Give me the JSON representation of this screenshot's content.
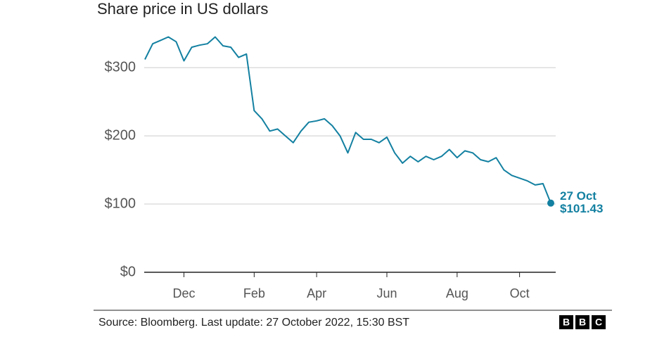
{
  "chart_data": {
    "type": "line",
    "title": "Share price in US dollars",
    "categories": [
      null,
      null,
      null,
      null,
      null,
      "Dec",
      null,
      null,
      null,
      null,
      null,
      null,
      null,
      null,
      "Feb",
      null,
      null,
      null,
      null,
      null,
      null,
      null,
      "Apr",
      null,
      null,
      null,
      null,
      null,
      null,
      null,
      null,
      "Jun",
      null,
      null,
      null,
      null,
      null,
      null,
      null,
      null,
      "Aug",
      null,
      null,
      null,
      null,
      null,
      null,
      null,
      "Oct",
      null,
      null,
      null,
      null
    ],
    "series": [
      {
        "name": "Share price",
        "color": "#1380a1",
        "values": [
          312,
          335,
          340,
          345,
          338,
          310,
          330,
          333,
          335,
          345,
          332,
          330,
          315,
          320,
          237,
          225,
          207,
          210,
          200,
          190,
          207,
          220,
          222,
          225,
          215,
          200,
          175,
          205,
          195,
          195,
          190,
          198,
          175,
          160,
          170,
          162,
          170,
          165,
          170,
          180,
          168,
          178,
          175,
          165,
          162,
          168,
          150,
          142,
          138,
          134,
          128,
          130,
          101.43
        ]
      }
    ],
    "ylim": [
      0,
      360
    ],
    "yticks": [
      {
        "value": 0,
        "label": "$0"
      },
      {
        "value": 100,
        "label": "$100"
      },
      {
        "value": 200,
        "label": "$200"
      },
      {
        "value": 300,
        "label": "$300"
      }
    ],
    "grid": true,
    "annotation": [
      "27 Oct",
      "$101.43"
    ],
    "source": "Source: Bloomberg. Last update: 27 October 2022, 15:30 BST",
    "logo": [
      "B",
      "B",
      "C"
    ]
  }
}
